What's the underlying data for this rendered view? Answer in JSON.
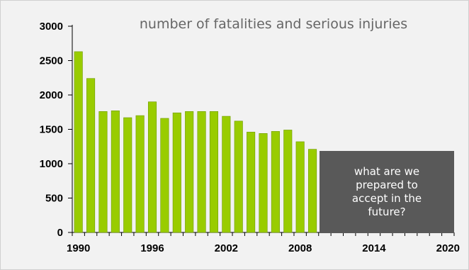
{
  "chart_data": {
    "type": "bar",
    "title": "number of fatalities and serious injuries",
    "xlabel": "",
    "ylabel": "",
    "ylim": [
      0,
      3000
    ],
    "yticks": [
      0,
      500,
      1000,
      1500,
      2000,
      2500,
      3000
    ],
    "xlim": [
      1990,
      2020
    ],
    "xticks": [
      "1990",
      "1996",
      "2002",
      "2008",
      "2014",
      "2020"
    ],
    "grid": false,
    "legend": "none",
    "categories": [
      "1990",
      "1991",
      "1992",
      "1993",
      "1994",
      "1995",
      "1996",
      "1997",
      "1998",
      "1999",
      "2000",
      "2001",
      "2002",
      "2003",
      "2004",
      "2005",
      "2006",
      "2007",
      "2008",
      "2009"
    ],
    "values": [
      2630,
      2240,
      1760,
      1770,
      1670,
      1700,
      1900,
      1660,
      1740,
      1760,
      1760,
      1760,
      1690,
      1620,
      1460,
      1440,
      1470,
      1490,
      1320,
      1210
    ],
    "bar_color": "#99cc00",
    "bar_edge_color": "#6f9a00"
  },
  "callout": {
    "text": "what are we prepared to accept in the future?",
    "background": "#595959"
  }
}
